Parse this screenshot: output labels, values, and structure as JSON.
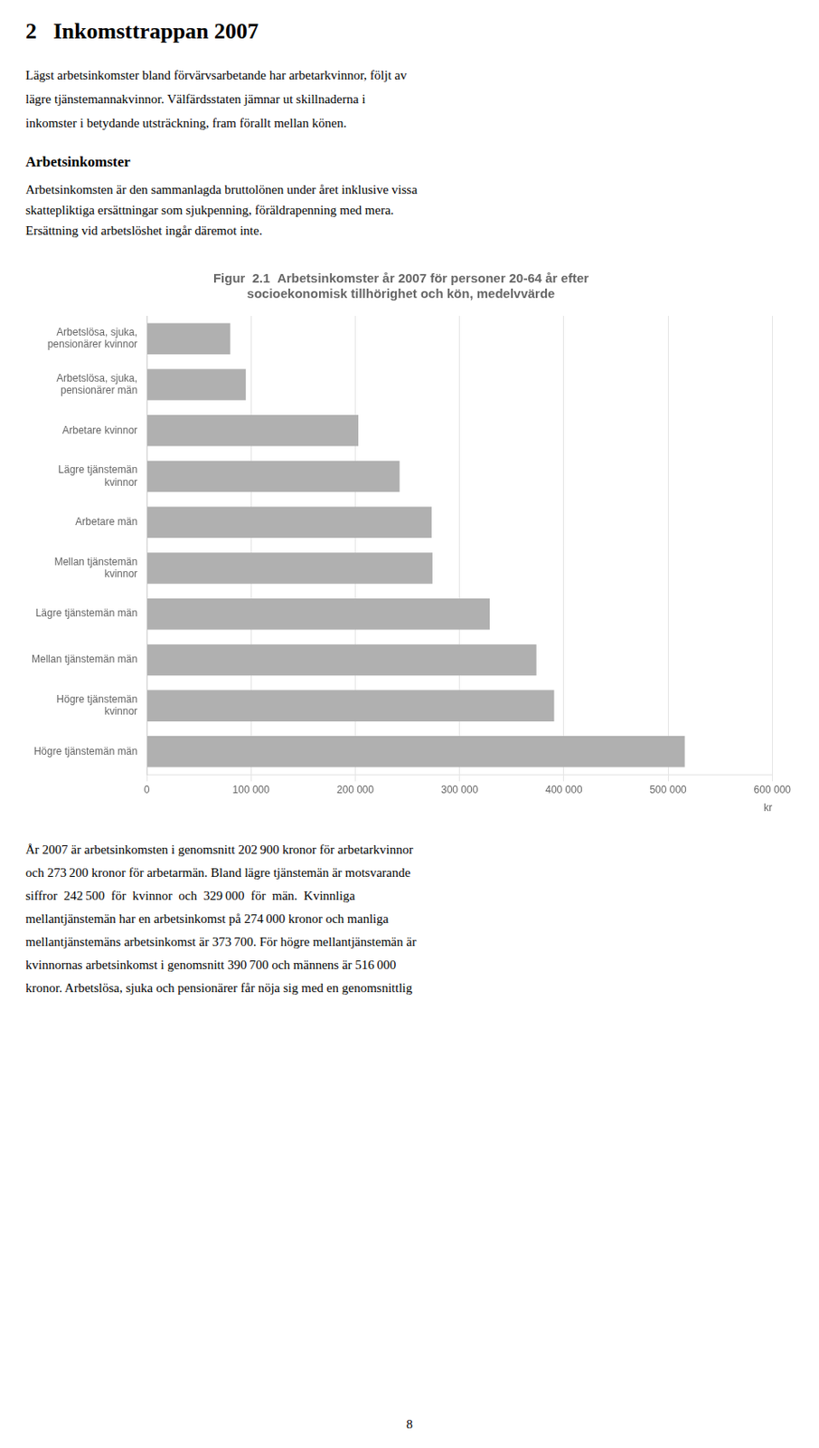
{
  "chart_data": {
    "type": "bar",
    "orientation": "horizontal",
    "title": "Figur  2.1  Arbetsinkomster år 2007 för personer 20-64 år efter\nsocioekonomisk tillhörighet och kön, medelvvärde",
    "xlabel": "kr",
    "categories": [
      "Arbetslösa, sjuka,\npensionärer kvinnor",
      "Arbetslösa, sjuka,\npensionärer män",
      "Arbetare kvinnor",
      "Lägre tjänstemän\nkvinnor",
      "Arbetare män",
      "Mellan tjänstemän\nkvinnor",
      "Lägre tjänstemän män",
      "Mellan tjänstemän män",
      "Högre tjänstemän\nkvinnor",
      "Högre tjänstemän män"
    ],
    "values": [
      80000,
      95000,
      202900,
      242500,
      273200,
      274000,
      329000,
      373700,
      390700,
      516000
    ],
    "color": "#b0b0b0",
    "xlim": [
      0,
      600000
    ],
    "xticks": [
      0,
      {
        "value": 100000,
        "label": "100 000"
      },
      {
        "value": 200000,
        "label": "200 000"
      },
      {
        "value": 300000,
        "label": "300 000"
      },
      {
        "value": 400000,
        "label": "400 000"
      },
      {
        "value": 500000,
        "label": "500 000"
      },
      {
        "value": 600000,
        "label": "600 000"
      }
    ],
    "grid": true,
    "annotations": [
      "2   Inkomsttrappan 2007",
      "Lägst arbetsinkomster bland förvärvsarbetande har arbetarkvinnor, följt av\nlägre tjänstemannakvinnor. Välfärdsstaten jämnar ut skillnaderna i\ninkomster i betydande utsträckning, fram förallt mellan könen.",
      "Arbetsinkomster",
      "Arbetsinkomsten är den sammanlagda bruttolönen under året inklusive vissa",
      "skattepliktiga ersättningar som sjukpenning, föräldrapenning med mera.",
      "Ersättning vid arbetslöshet ingår däremot inte.",
      "År 2007 är arbetsinkomsten i genomsnitt 202 900 kronor för arbetarkvinnor",
      "och 273 200 kronor för arbetarmän. Bland lägre tjänstemän är motsvarande",
      "siffror  242 500  för  kvinnor  och  329 000  för  män.  Kvinnliga",
      "mellantjänstemän har en arbetsinkomst på 274 000 kronor och manliga",
      "mellantjänstemäns arbetsinkomst är 373 700. För högre mellantjänstemän är",
      "kvinnornas arbetsinkomst i genomsnitt 390 700 och männens är 516 000",
      "kronor. Arbetslösa, sjuka och pensionärer får nöja sig med en genomsnittlig",
      "8"
    ]
  }
}
